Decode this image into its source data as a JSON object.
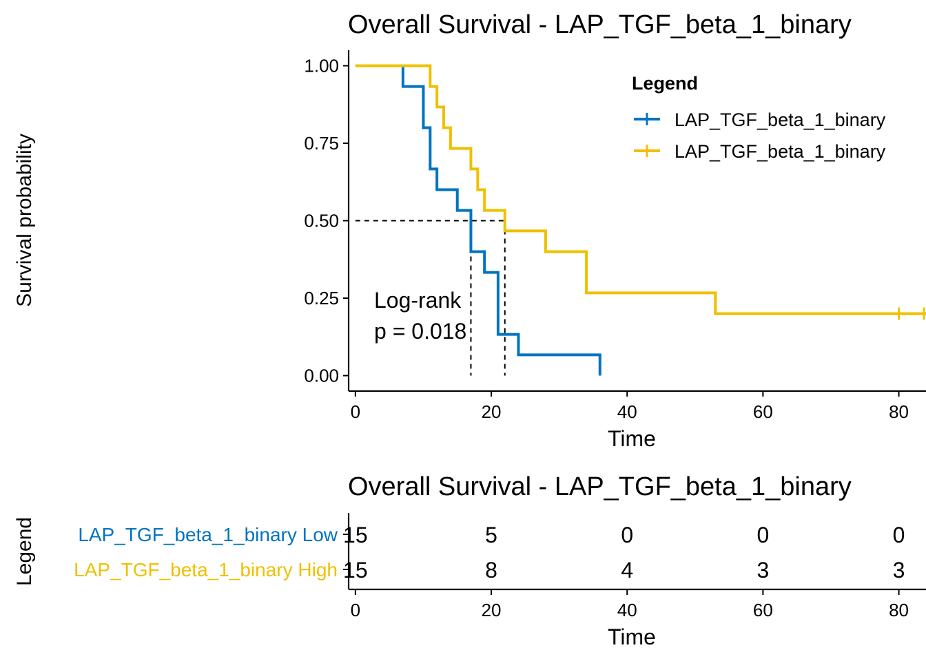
{
  "colors": {
    "low": "#0073C2",
    "high": "#EFC000",
    "axis": "#000000",
    "median": "#000000"
  },
  "chart_data": [
    {
      "type": "line",
      "subtype": "kaplan-meier step",
      "title": "Overall Survival - LAP_TGF_beta_1_binary",
      "xlabel": "Time",
      "ylabel": "Survival probability",
      "xlim": [
        -1,
        84
      ],
      "ylim": [
        -0.05,
        1.05
      ],
      "xticks": [
        "0",
        "20",
        "40",
        "60",
        "80"
      ],
      "xtick_values": [
        0,
        20,
        40,
        60,
        80
      ],
      "yticks": [
        "0.00",
        "0.25",
        "0.50",
        "0.75",
        "1.00"
      ],
      "ytick_values": [
        0,
        0.25,
        0.5,
        0.75,
        1.0
      ],
      "grid": false,
      "legend": {
        "title": "Legend",
        "position": "top-right",
        "entries": [
          "LAP_TGF_beta_1_binary",
          "LAP_TGF_beta_1_binary"
        ]
      },
      "annotation": {
        "line1": "Log-rank",
        "line2": "p = 0.018"
      },
      "median_lines": {
        "y": 0.5,
        "x": [
          17,
          22
        ]
      },
      "series": [
        {
          "key": "low",
          "color": "#0073C2",
          "steps": [
            [
              0,
              1.0
            ],
            [
              7,
              0.933
            ],
            [
              10,
              0.8
            ],
            [
              11,
              0.667
            ],
            [
              12,
              0.6
            ],
            [
              15,
              0.533
            ],
            [
              17,
              0.4
            ],
            [
              19,
              0.333
            ],
            [
              21,
              0.133
            ],
            [
              24,
              0.067
            ],
            [
              36,
              0.0
            ]
          ],
          "end_time": 36,
          "censor_times": []
        },
        {
          "key": "high",
          "color": "#EFC000",
          "steps": [
            [
              0,
              1.0
            ],
            [
              11,
              0.933
            ],
            [
              12,
              0.867
            ],
            [
              13,
              0.8
            ],
            [
              14,
              0.733
            ],
            [
              17,
              0.667
            ],
            [
              18,
              0.6
            ],
            [
              19,
              0.533
            ],
            [
              22,
              0.467
            ],
            [
              28,
              0.4
            ],
            [
              34,
              0.267
            ],
            [
              53,
              0.2
            ]
          ],
          "end_time": 84,
          "censor_times": [
            80,
            84
          ]
        }
      ]
    },
    {
      "type": "table",
      "title": "Overall Survival - LAP_TGF_beta_1_binary",
      "xlabel": "Time",
      "ylabel": "Legend",
      "xlim": [
        -1,
        84
      ],
      "xticks": [
        "0",
        "20",
        "40",
        "60",
        "80"
      ],
      "xtick_values": [
        0,
        20,
        40,
        60,
        80
      ],
      "rows": [
        {
          "key": "low",
          "label": "LAP_TGF_beta_1_binary Low",
          "color": "#0073C2",
          "values": [
            "15",
            "5",
            "0",
            "0",
            "0"
          ]
        },
        {
          "key": "high",
          "label": "LAP_TGF_beta_1_binary High",
          "color": "#EFC000",
          "values": [
            "15",
            "8",
            "4",
            "3",
            "3"
          ]
        }
      ]
    }
  ]
}
